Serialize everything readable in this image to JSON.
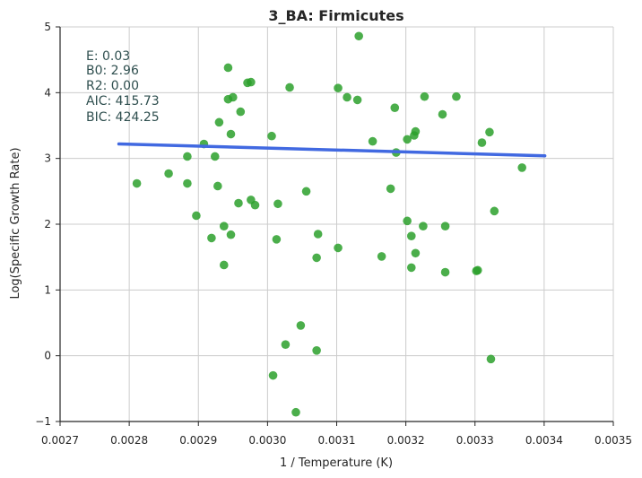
{
  "chart_data": {
    "type": "scatter",
    "title": "3_BA: Firmicutes",
    "xlabel": "1 / Temperature (K)",
    "ylabel": "Log(Specific Growth Rate)",
    "xlim": [
      0.0027,
      0.0035
    ],
    "ylim": [
      -1,
      5
    ],
    "xticks": [
      "0.0027",
      "0.0028",
      "0.0029",
      "0.0030",
      "0.0031",
      "0.0032",
      "0.0033",
      "0.0034",
      "0.0035"
    ],
    "xtick_values": [
      0.0027,
      0.0028,
      0.0029,
      0.003,
      0.0031,
      0.0032,
      0.0033,
      0.0034,
      0.0035
    ],
    "yticks": [
      "−1",
      "0",
      "1",
      "2",
      "3",
      "4",
      "5"
    ],
    "ytick_values": [
      -1,
      0,
      1,
      2,
      3,
      4,
      5
    ],
    "grid": true,
    "stats": [
      "E:  0.03",
      "B0:  2.96",
      "R2:  0.00",
      "AIC: 415.73",
      "BIC: 424.25"
    ],
    "colors": {
      "points": "#2ca02c",
      "fit_line": "#4169e1"
    },
    "fit_line": {
      "x": [
        0.002785,
        0.003401
      ],
      "y": [
        3.22,
        3.04
      ]
    },
    "points": [
      {
        "x": 0.002811,
        "y": 2.62
      },
      {
        "x": 0.002857,
        "y": 2.77
      },
      {
        "x": 0.002884,
        "y": 3.03
      },
      {
        "x": 0.002884,
        "y": 2.62
      },
      {
        "x": 0.002897,
        "y": 2.13
      },
      {
        "x": 0.002908,
        "y": 3.22
      },
      {
        "x": 0.002919,
        "y": 1.79
      },
      {
        "x": 0.002924,
        "y": 3.03
      },
      {
        "x": 0.002928,
        "y": 2.58
      },
      {
        "x": 0.00293,
        "y": 3.55
      },
      {
        "x": 0.002937,
        "y": 1.97
      },
      {
        "x": 0.002937,
        "y": 1.38
      },
      {
        "x": 0.002943,
        "y": 4.38
      },
      {
        "x": 0.002943,
        "y": 3.9
      },
      {
        "x": 0.002947,
        "y": 3.37
      },
      {
        "x": 0.002947,
        "y": 1.84
      },
      {
        "x": 0.00295,
        "y": 3.93
      },
      {
        "x": 0.002958,
        "y": 2.32
      },
      {
        "x": 0.002961,
        "y": 3.71
      },
      {
        "x": 0.002971,
        "y": 4.15
      },
      {
        "x": 0.002976,
        "y": 4.16
      },
      {
        "x": 0.002976,
        "y": 2.37
      },
      {
        "x": 0.002982,
        "y": 2.29
      },
      {
        "x": 0.003006,
        "y": 3.34
      },
      {
        "x": 0.003008,
        "y": -0.3
      },
      {
        "x": 0.003013,
        "y": 1.77
      },
      {
        "x": 0.003015,
        "y": 2.31
      },
      {
        "x": 0.003026,
        "y": 0.17
      },
      {
        "x": 0.003032,
        "y": 4.08
      },
      {
        "x": 0.003041,
        "y": -0.86
      },
      {
        "x": 0.003048,
        "y": 0.46
      },
      {
        "x": 0.003056,
        "y": 2.5
      },
      {
        "x": 0.003071,
        "y": 1.49
      },
      {
        "x": 0.003071,
        "y": 0.08
      },
      {
        "x": 0.003073,
        "y": 1.85
      },
      {
        "x": 0.003102,
        "y": 4.07
      },
      {
        "x": 0.003102,
        "y": 1.64
      },
      {
        "x": 0.003115,
        "y": 3.93
      },
      {
        "x": 0.00313,
        "y": 3.89
      },
      {
        "x": 0.003132,
        "y": 4.86
      },
      {
        "x": 0.003152,
        "y": 3.26
      },
      {
        "x": 0.003165,
        "y": 1.51
      },
      {
        "x": 0.003178,
        "y": 2.54
      },
      {
        "x": 0.003184,
        "y": 3.77
      },
      {
        "x": 0.003186,
        "y": 3.09
      },
      {
        "x": 0.003202,
        "y": 3.29
      },
      {
        "x": 0.003202,
        "y": 2.05
      },
      {
        "x": 0.003208,
        "y": 1.82
      },
      {
        "x": 0.003208,
        "y": 1.34
      },
      {
        "x": 0.003212,
        "y": 3.35
      },
      {
        "x": 0.003214,
        "y": 3.41
      },
      {
        "x": 0.003214,
        "y": 1.56
      },
      {
        "x": 0.003225,
        "y": 1.97
      },
      {
        "x": 0.003227,
        "y": 3.94
      },
      {
        "x": 0.003253,
        "y": 3.67
      },
      {
        "x": 0.003257,
        "y": 1.97
      },
      {
        "x": 0.003257,
        "y": 1.27
      },
      {
        "x": 0.003273,
        "y": 3.94
      },
      {
        "x": 0.003302,
        "y": 1.29
      },
      {
        "x": 0.003304,
        "y": 1.3
      },
      {
        "x": 0.00331,
        "y": 3.24
      },
      {
        "x": 0.003321,
        "y": 3.4
      },
      {
        "x": 0.003323,
        "y": -0.05
      },
      {
        "x": 0.003328,
        "y": 2.2
      },
      {
        "x": 0.003368,
        "y": 2.86
      }
    ]
  }
}
